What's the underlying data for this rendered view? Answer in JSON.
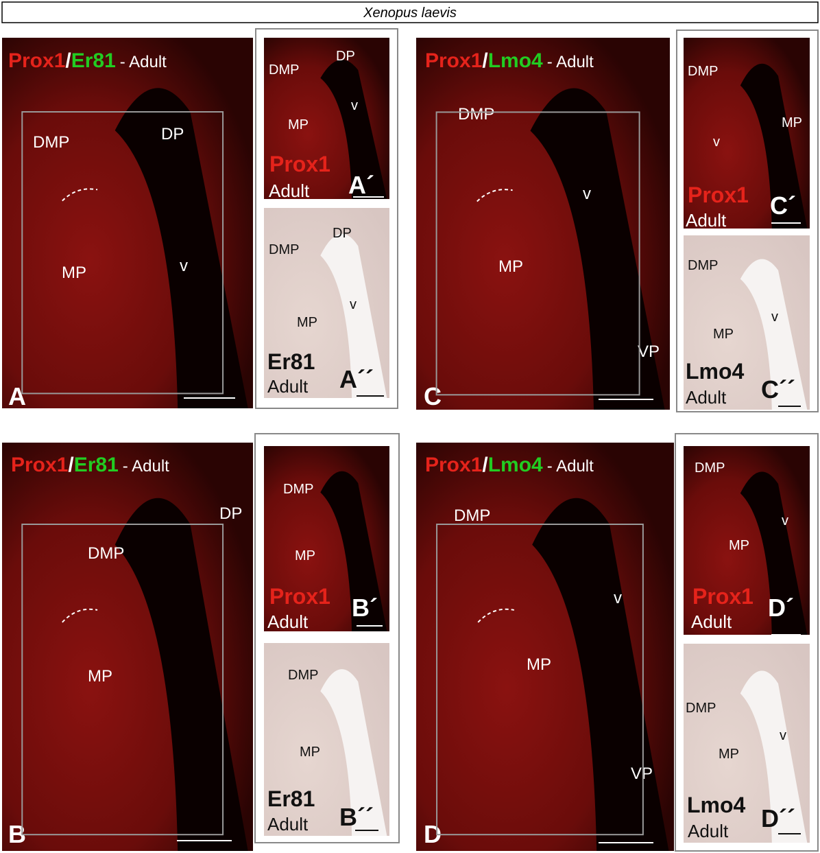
{
  "header": {
    "species": "Xenopus laevis"
  },
  "panels": [
    {
      "letter": "A",
      "title": [
        "Prox1",
        "/",
        "Er81",
        "- Adult"
      ],
      "regions": [
        "DMP",
        "DP",
        "MP",
        "v"
      ]
    },
    {
      "letter": "A´",
      "marker": "Prox1",
      "stage": "Adult",
      "regions": [
        "DMP",
        "DP",
        "MP",
        "v"
      ]
    },
    {
      "letter": "A´´",
      "marker": "Er81",
      "stage": "Adult",
      "regions": [
        "DP",
        "DMP",
        "MP",
        "v"
      ]
    },
    {
      "letter": "B",
      "title": [
        "Prox1",
        "/",
        "Er81",
        "- Adult"
      ],
      "regions": [
        "DP",
        "DMP",
        "MP"
      ]
    },
    {
      "letter": "B´",
      "marker": "Prox1",
      "stage": "Adult",
      "regions": [
        "DMP",
        "MP"
      ]
    },
    {
      "letter": "B´´",
      "marker": "Er81",
      "stage": "Adult",
      "regions": [
        "DMP",
        "MP"
      ]
    },
    {
      "letter": "C",
      "title": [
        "Prox1",
        "/",
        "Lmo4",
        "- Adult"
      ],
      "regions": [
        "DMP",
        "v",
        "MP",
        "VP"
      ]
    },
    {
      "letter": "C´",
      "marker": "Prox1",
      "stage": "Adult",
      "regions": [
        "DMP",
        "MP",
        "v"
      ]
    },
    {
      "letter": "C´´",
      "marker": "Lmo4",
      "stage": "Adult",
      "regions": [
        "DMP",
        "v",
        "MP"
      ]
    },
    {
      "letter": "D",
      "title": [
        "Prox1",
        "/",
        "Lmo4",
        "- Adult"
      ],
      "regions": [
        "DMP",
        "v",
        "MP",
        "VP"
      ]
    },
    {
      "letter": "D´",
      "marker": "Prox1",
      "stage": "Adult",
      "regions": [
        "DMP",
        "v",
        "MP"
      ]
    },
    {
      "letter": "D´´",
      "marker": "Lmo4",
      "stage": "Adult",
      "regions": [
        "DMP",
        "v",
        "MP"
      ]
    }
  ]
}
